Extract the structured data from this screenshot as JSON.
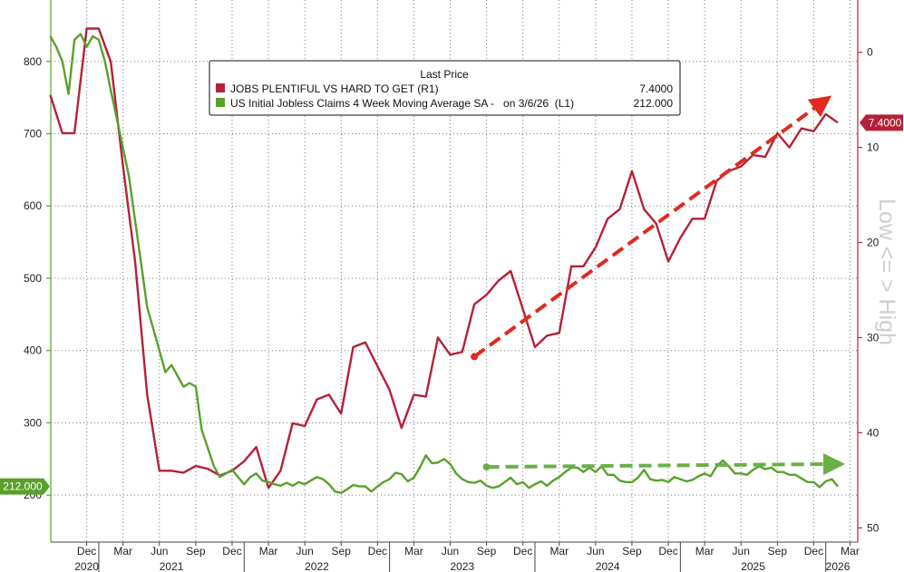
{
  "chart_data": {
    "type": "line",
    "legend": {
      "header": "Last Price",
      "placement": "top-left",
      "entries": [
        {
          "label": "JOBS PLENTIFUL VS HARD TO GET  (R1)",
          "value": "7.4000",
          "color": "#b52138"
        },
        {
          "label": "US Initial Jobless Claims 4 Week Moving Average SA -   on 3/6/26  (L1)",
          "value": "212.000",
          "color": "#5aa02c"
        }
      ]
    },
    "right_axis_title": "Low <= > High",
    "left_axis": {
      "ticks": [
        200,
        300,
        400,
        500,
        600,
        700,
        800
      ],
      "ylim": [
        135,
        885
      ]
    },
    "right_axis": {
      "ticks": [
        0,
        10,
        20,
        30,
        40,
        50
      ],
      "ylim": [
        -5.5,
        51.5
      ],
      "inverted": true
    },
    "x_axis": {
      "month_ticks": [
        {
          "label": "Dec",
          "x": 2020.917
        },
        {
          "label": "Mar",
          "x": 2021.167
        },
        {
          "label": "Jun",
          "x": 2021.417
        },
        {
          "label": "Sep",
          "x": 2021.667
        },
        {
          "label": "Dec",
          "x": 2021.917
        },
        {
          "label": "Mar",
          "x": 2022.167
        },
        {
          "label": "Jun",
          "x": 2022.417
        },
        {
          "label": "Sep",
          "x": 2022.667
        },
        {
          "label": "Dec",
          "x": 2022.917
        },
        {
          "label": "Mar",
          "x": 2023.167
        },
        {
          "label": "Jun",
          "x": 2023.417
        },
        {
          "label": "Sep",
          "x": 2023.667
        },
        {
          "label": "Dec",
          "x": 2023.917
        },
        {
          "label": "Mar",
          "x": 2024.167
        },
        {
          "label": "Jun",
          "x": 2024.417
        },
        {
          "label": "Sep",
          "x": 2024.667
        },
        {
          "label": "Dec",
          "x": 2024.917
        },
        {
          "label": "Mar",
          "x": 2025.167
        },
        {
          "label": "Jun",
          "x": 2025.417
        },
        {
          "label": "Sep",
          "x": 2025.667
        },
        {
          "label": "Dec",
          "x": 2025.917
        },
        {
          "label": "Mar",
          "x": 2026.167
        }
      ],
      "years": [
        {
          "label": "2020",
          "x": 2020.917
        },
        {
          "label": "2021",
          "x": 2021.5
        },
        {
          "label": "2022",
          "x": 2022.5
        },
        {
          "label": "2023",
          "x": 2023.5
        },
        {
          "label": "2024",
          "x": 2024.5
        },
        {
          "label": "2025",
          "x": 2025.5
        },
        {
          "label": "2026",
          "x": 2026.083
        }
      ],
      "year_boundaries": [
        2021.0,
        2022.0,
        2023.0,
        2024.0,
        2025.0,
        2026.0
      ],
      "xlim": [
        2020.67,
        2026.22
      ]
    },
    "series": [
      {
        "name": "JOBS PLENTIFUL VS HARD TO GET  (R1)",
        "axis": "right",
        "color": "#b52138",
        "points": [
          [
            2020.667,
            4.5
          ],
          [
            2020.75,
            8.5
          ],
          [
            2020.833,
            8.5
          ],
          [
            2020.917,
            -2.5
          ],
          [
            2021.0,
            -2.5
          ],
          [
            2021.083,
            1.0
          ],
          [
            2021.167,
            12.0
          ],
          [
            2021.25,
            22.0
          ],
          [
            2021.333,
            36.0
          ],
          [
            2021.417,
            44.0
          ],
          [
            2021.5,
            44.0
          ],
          [
            2021.583,
            44.2
          ],
          [
            2021.667,
            43.5
          ],
          [
            2021.75,
            43.8
          ],
          [
            2021.833,
            44.5
          ],
          [
            2021.917,
            44.0
          ],
          [
            2022.0,
            43.0
          ],
          [
            2022.083,
            41.5
          ],
          [
            2022.167,
            45.8
          ],
          [
            2022.25,
            44.0
          ],
          [
            2022.333,
            39.0
          ],
          [
            2022.417,
            39.3
          ],
          [
            2022.5,
            36.5
          ],
          [
            2022.583,
            36.0
          ],
          [
            2022.667,
            38.0
          ],
          [
            2022.75,
            31.0
          ],
          [
            2022.833,
            30.5
          ],
          [
            2022.917,
            33.0
          ],
          [
            2023.0,
            35.5
          ],
          [
            2023.083,
            39.5
          ],
          [
            2023.167,
            36.0
          ],
          [
            2023.25,
            36.2
          ],
          [
            2023.333,
            30.0
          ],
          [
            2023.417,
            31.8
          ],
          [
            2023.5,
            31.5
          ],
          [
            2023.583,
            26.5
          ],
          [
            2023.667,
            25.5
          ],
          [
            2023.75,
            24.0
          ],
          [
            2023.833,
            23.0
          ],
          [
            2023.917,
            27.0
          ],
          [
            2024.0,
            31.0
          ],
          [
            2024.083,
            29.8
          ],
          [
            2024.167,
            29.5
          ],
          [
            2024.25,
            22.5
          ],
          [
            2024.333,
            22.5
          ],
          [
            2024.417,
            20.5
          ],
          [
            2024.5,
            17.5
          ],
          [
            2024.583,
            16.5
          ],
          [
            2024.667,
            12.5
          ],
          [
            2024.75,
            16.5
          ],
          [
            2024.833,
            18.0
          ],
          [
            2024.917,
            22.0
          ],
          [
            2025.0,
            19.5
          ],
          [
            2025.083,
            17.5
          ],
          [
            2025.167,
            17.5
          ],
          [
            2025.25,
            13.5
          ],
          [
            2025.333,
            12.5
          ],
          [
            2025.417,
            12.0
          ],
          [
            2025.5,
            10.8
          ],
          [
            2025.583,
            11.0
          ],
          [
            2025.667,
            8.5
          ],
          [
            2025.75,
            10.0
          ],
          [
            2025.833,
            8.0
          ],
          [
            2025.917,
            8.3
          ],
          [
            2026.0,
            6.5
          ],
          [
            2026.083,
            7.4
          ]
        ],
        "last_value_label": "7.4000"
      },
      {
        "name": "US Initial Jobless Claims 4 Week Moving Average SA -   on 3/6/26  (L1)",
        "axis": "left",
        "color": "#5aa02c",
        "points": [
          [
            2020.667,
            835
          ],
          [
            2020.708,
            820
          ],
          [
            2020.75,
            800
          ],
          [
            2020.792,
            755
          ],
          [
            2020.833,
            830
          ],
          [
            2020.875,
            838
          ],
          [
            2020.917,
            820
          ],
          [
            2020.958,
            835
          ],
          [
            2021.0,
            830
          ],
          [
            2021.042,
            800
          ],
          [
            2021.083,
            760
          ],
          [
            2021.125,
            720
          ],
          [
            2021.167,
            680
          ],
          [
            2021.208,
            640
          ],
          [
            2021.25,
            580
          ],
          [
            2021.292,
            520
          ],
          [
            2021.333,
            460
          ],
          [
            2021.375,
            430
          ],
          [
            2021.417,
            400
          ],
          [
            2021.458,
            370
          ],
          [
            2021.5,
            380
          ],
          [
            2021.542,
            365
          ],
          [
            2021.583,
            350
          ],
          [
            2021.625,
            355
          ],
          [
            2021.667,
            350
          ],
          [
            2021.708,
            290
          ],
          [
            2021.75,
            265
          ],
          [
            2021.792,
            240
          ],
          [
            2021.833,
            225
          ],
          [
            2021.875,
            230
          ],
          [
            2021.917,
            235
          ],
          [
            2021.958,
            225
          ],
          [
            2022.0,
            215
          ],
          [
            2022.042,
            225
          ],
          [
            2022.083,
            230
          ],
          [
            2022.125,
            220
          ],
          [
            2022.167,
            218
          ],
          [
            2022.208,
            215
          ],
          [
            2022.25,
            213
          ],
          [
            2022.292,
            217
          ],
          [
            2022.333,
            213
          ],
          [
            2022.375,
            218
          ],
          [
            2022.417,
            215
          ],
          [
            2022.458,
            220
          ],
          [
            2022.5,
            225
          ],
          [
            2022.542,
            222
          ],
          [
            2022.583,
            215
          ],
          [
            2022.625,
            205
          ],
          [
            2022.667,
            203
          ],
          [
            2022.708,
            208
          ],
          [
            2022.75,
            214
          ],
          [
            2022.792,
            212
          ],
          [
            2022.833,
            212
          ],
          [
            2022.875,
            205
          ],
          [
            2022.917,
            212
          ],
          [
            2022.958,
            218
          ],
          [
            2023.0,
            222
          ],
          [
            2023.042,
            231
          ],
          [
            2023.083,
            229
          ],
          [
            2023.125,
            219
          ],
          [
            2023.167,
            224
          ],
          [
            2023.208,
            238
          ],
          [
            2023.25,
            255
          ],
          [
            2023.292,
            244
          ],
          [
            2023.333,
            245
          ],
          [
            2023.375,
            250
          ],
          [
            2023.417,
            243
          ],
          [
            2023.458,
            230
          ],
          [
            2023.5,
            222
          ],
          [
            2023.542,
            218
          ],
          [
            2023.583,
            217
          ],
          [
            2023.625,
            220
          ],
          [
            2023.667,
            213
          ],
          [
            2023.708,
            210
          ],
          [
            2023.75,
            212
          ],
          [
            2023.792,
            218
          ],
          [
            2023.833,
            224
          ],
          [
            2023.875,
            215
          ],
          [
            2023.917,
            218
          ],
          [
            2023.958,
            210
          ],
          [
            2024.0,
            215
          ],
          [
            2024.042,
            219
          ],
          [
            2024.083,
            213
          ],
          [
            2024.125,
            220
          ],
          [
            2024.167,
            225
          ],
          [
            2024.208,
            232
          ],
          [
            2024.25,
            238
          ],
          [
            2024.292,
            238
          ],
          [
            2024.333,
            232
          ],
          [
            2024.375,
            238
          ],
          [
            2024.417,
            232
          ],
          [
            2024.458,
            240
          ],
          [
            2024.5,
            228
          ],
          [
            2024.542,
            228
          ],
          [
            2024.583,
            220
          ],
          [
            2024.625,
            218
          ],
          [
            2024.667,
            218
          ],
          [
            2024.708,
            224
          ],
          [
            2024.75,
            235
          ],
          [
            2024.792,
            222
          ],
          [
            2024.833,
            220
          ],
          [
            2024.875,
            221
          ],
          [
            2024.917,
            218
          ],
          [
            2024.958,
            225
          ],
          [
            2025.0,
            222
          ],
          [
            2025.042,
            219
          ],
          [
            2025.083,
            221
          ],
          [
            2025.125,
            226
          ],
          [
            2025.167,
            230
          ],
          [
            2025.208,
            226
          ],
          [
            2025.25,
            240
          ],
          [
            2025.292,
            248
          ],
          [
            2025.333,
            240
          ],
          [
            2025.375,
            230
          ],
          [
            2025.417,
            230
          ],
          [
            2025.458,
            228
          ],
          [
            2025.5,
            235
          ],
          [
            2025.542,
            240
          ],
          [
            2025.583,
            236
          ],
          [
            2025.625,
            238
          ],
          [
            2025.667,
            232
          ],
          [
            2025.708,
            232
          ],
          [
            2025.75,
            228
          ],
          [
            2025.792,
            228
          ],
          [
            2025.833,
            223
          ],
          [
            2025.875,
            218
          ],
          [
            2025.917,
            218
          ],
          [
            2025.958,
            211
          ],
          [
            2026.0,
            219
          ],
          [
            2026.042,
            222
          ],
          [
            2026.083,
            212
          ]
        ],
        "last_value_label": "212.000"
      }
    ],
    "annotations": [
      {
        "type": "dashed-arrow",
        "axis": "right",
        "color": "#e02a1f",
        "from": [
          2023.583,
          32.0
        ],
        "to": [
          2026.0,
          5.0
        ]
      },
      {
        "type": "dashed-arrow",
        "axis": "left",
        "color": "#6ab045",
        "from": [
          2023.667,
          239
        ],
        "to": [
          2026.083,
          243
        ]
      }
    ]
  }
}
